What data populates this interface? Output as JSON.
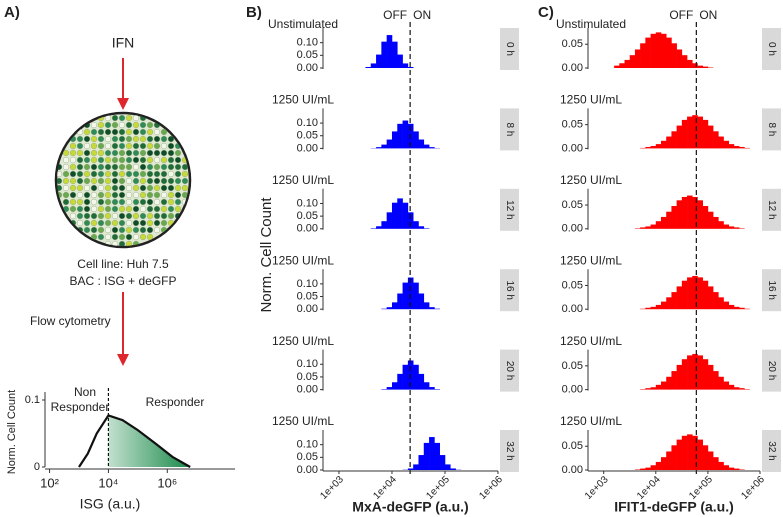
{
  "panel_a": {
    "label": "A)",
    "stimulus": "IFN",
    "cell_line": "Cell line: Huh 7.5",
    "construct": "BAC : ISG + deGFP",
    "method": "Flow cytometry"
  },
  "chart_data": [
    {
      "type": "line",
      "xlabel": "ISG (a.u.)",
      "ylabel": "Norm. Cell Count",
      "xscale": "log",
      "x": [
        1000,
        2000,
        4000,
        10000,
        30000,
        100000,
        400000,
        1500000,
        6000000
      ],
      "values": [
        0,
        0.02,
        0.05,
        0.077,
        0.07,
        0.055,
        0.035,
        0.015,
        0
      ],
      "color": "#111111",
      "fill_color": "#1a8a4a",
      "xlim": [
        70,
        200000000
      ],
      "ylim": [
        0,
        0.1
      ],
      "xticks": [
        {
          "value": 100,
          "label": "10²"
        },
        {
          "value": 10000,
          "label": "10⁴"
        },
        {
          "value": 1000000,
          "label": "10⁶"
        }
      ],
      "yticks": [
        0,
        0.1
      ],
      "threshold": 10000,
      "off_label_lines": [
        "Non",
        "Responder"
      ],
      "on_label": "Responder"
    },
    {
      "type": "histogram",
      "panel_label": "B)",
      "xlabel": "MxA-deGFP (a.u.)",
      "ylabel": "Norm. Cell Count",
      "xscale": "log",
      "xlim": [
        500,
        1000000
      ],
      "ylim": [
        0,
        0.15
      ],
      "xticks": [
        {
          "value": 1000,
          "label": "1e+03"
        },
        {
          "value": 10000,
          "label": "1e+04"
        },
        {
          "value": 100000,
          "label": "1e+05"
        },
        {
          "value": 1000000,
          "label": "1e+06"
        }
      ],
      "yticks": [
        {
          "value": 0,
          "label": "0.00"
        },
        0.05,
        {
          "value": 0.1,
          "label": "0.10"
        }
      ],
      "threshold": 22000,
      "threshold_labels": [
        "OFF",
        "ON"
      ],
      "color": "#0000ff",
      "annotation_color": "#e8282e",
      "bins": [
        1585,
        1995,
        2512,
        3162,
        3981,
        5012,
        6310,
        7943,
        10000,
        12589,
        15849,
        19953,
        25119,
        31623,
        39811,
        50119,
        63096,
        79433,
        100000,
        125893,
        158489,
        199526,
        251189,
        316228,
        398107,
        501187,
        630957
      ],
      "facets": [
        {
          "strip": "0 h",
          "annotation": "Unstimulated",
          "values": [
            0,
            0,
            0,
            0.004,
            0.018,
            0.053,
            0.104,
            0.13,
            0.104,
            0.053,
            0.018,
            0.004,
            0,
            0,
            0,
            0,
            0,
            0,
            0,
            0,
            0,
            0,
            0,
            0,
            0,
            0
          ]
        },
        {
          "strip": "8 h",
          "annotation": "1250 UI/mL",
          "values": [
            0,
            0,
            0,
            0,
            0.001,
            0.005,
            0.015,
            0.035,
            0.067,
            0.097,
            0.11,
            0.097,
            0.067,
            0.035,
            0.015,
            0.005,
            0.001,
            0,
            0,
            0,
            0,
            0,
            0,
            0,
            0,
            0
          ]
        },
        {
          "strip": "12 h",
          "annotation": "1250 UI/mL",
          "values": [
            0,
            0,
            0,
            0,
            0.002,
            0.01,
            0.03,
            0.065,
            0.103,
            0.12,
            0.103,
            0.065,
            0.03,
            0.01,
            0.002,
            0,
            0,
            0,
            0,
            0,
            0,
            0,
            0,
            0,
            0,
            0
          ]
        },
        {
          "strip": "16 h",
          "annotation": "1250 UI/mL",
          "values": [
            0,
            0,
            0,
            0,
            0,
            0,
            0.002,
            0.008,
            0.027,
            0.062,
            0.105,
            0.125,
            0.105,
            0.062,
            0.027,
            0.008,
            0.002,
            0,
            0,
            0,
            0,
            0,
            0,
            0,
            0,
            0
          ]
        },
        {
          "strip": "20 h",
          "annotation": "1250 UI/mL",
          "values": [
            0,
            0,
            0,
            0,
            0,
            0,
            0.002,
            0.01,
            0.029,
            0.062,
            0.098,
            0.115,
            0.098,
            0.062,
            0.029,
            0.01,
            0.002,
            0,
            0,
            0,
            0,
            0,
            0,
            0,
            0,
            0
          ]
        },
        {
          "strip": "32 h",
          "annotation": "1250 UI/mL",
          "values": [
            0,
            0,
            0,
            0,
            0,
            0,
            0,
            0,
            0,
            0,
            0.001,
            0.006,
            0.022,
            0.059,
            0.107,
            0.13,
            0.107,
            0.059,
            0.022,
            0.006,
            0.001,
            0,
            0,
            0,
            0,
            0
          ]
        }
      ]
    },
    {
      "type": "histogram",
      "panel_label": "C)",
      "xlabel": "IFIT1-deGFP (a.u.)",
      "xscale": "log",
      "xlim": [
        500,
        1000000
      ],
      "ylim": [
        0,
        0.08
      ],
      "xticks": [
        {
          "value": 1000,
          "label": "1e+03"
        },
        {
          "value": 10000,
          "label": "1e+04"
        },
        {
          "value": 100000,
          "label": "1e+05"
        },
        {
          "value": 1000000,
          "label": "1e+06"
        }
      ],
      "yticks": [
        {
          "value": 0,
          "label": "0.00"
        },
        0.05
      ],
      "threshold": 60000,
      "threshold_labels": [
        "OFF",
        "ON"
      ],
      "color": "#ff0000",
      "annotation_color": "#e8282e",
      "bins": [
        1585,
        1995,
        2512,
        3162,
        3981,
        5012,
        6310,
        7943,
        10000,
        12589,
        15849,
        19953,
        25119,
        31623,
        39811,
        50119,
        63096,
        79433,
        100000,
        125893,
        158489,
        199526,
        251189,
        316228,
        398107,
        501187,
        630957
      ],
      "facets": [
        {
          "strip": "0 h",
          "annotation": "Unstimulated",
          "values": [
            0.005,
            0.01,
            0.017,
            0.027,
            0.039,
            0.052,
            0.064,
            0.072,
            0.075,
            0.072,
            0.064,
            0.052,
            0.039,
            0.027,
            0.017,
            0.01,
            0.005,
            0.003,
            0.001,
            0,
            0,
            0,
            0,
            0,
            0,
            0
          ]
        },
        {
          "strip": "8 h",
          "annotation": "1250 UI/mL",
          "values": [
            0,
            0,
            0,
            0,
            0,
            0.001,
            0.003,
            0.005,
            0.009,
            0.016,
            0.025,
            0.036,
            0.048,
            0.06,
            0.067,
            0.07,
            0.067,
            0.06,
            0.048,
            0.036,
            0.025,
            0.016,
            0.009,
            0.005,
            0.003,
            0.001
          ]
        },
        {
          "strip": "12 h",
          "annotation": "1250 UI/mL",
          "values": [
            0,
            0,
            0,
            0,
            0.001,
            0.003,
            0.005,
            0.009,
            0.016,
            0.025,
            0.036,
            0.048,
            0.06,
            0.067,
            0.07,
            0.067,
            0.06,
            0.048,
            0.036,
            0.025,
            0.016,
            0.009,
            0.005,
            0.003,
            0.001,
            0
          ]
        },
        {
          "strip": "16 h",
          "annotation": "1250 UI/mL",
          "values": [
            0,
            0,
            0,
            0,
            0,
            0.001,
            0.003,
            0.005,
            0.009,
            0.016,
            0.025,
            0.036,
            0.048,
            0.06,
            0.067,
            0.07,
            0.067,
            0.06,
            0.048,
            0.036,
            0.025,
            0.016,
            0.009,
            0.005,
            0.003,
            0.001
          ]
        },
        {
          "strip": "20 h",
          "annotation": "1250 UI/mL",
          "values": [
            0,
            0,
            0,
            0,
            0,
            0.001,
            0.003,
            0.005,
            0.01,
            0.017,
            0.027,
            0.039,
            0.052,
            0.064,
            0.072,
            0.075,
            0.072,
            0.064,
            0.052,
            0.039,
            0.027,
            0.017,
            0.01,
            0.005,
            0.003,
            0.001
          ]
        },
        {
          "strip": "32 h",
          "annotation": "1250 UI/mL",
          "values": [
            0,
            0,
            0,
            0,
            0.001,
            0.003,
            0.005,
            0.01,
            0.017,
            0.027,
            0.039,
            0.052,
            0.064,
            0.072,
            0.075,
            0.072,
            0.064,
            0.052,
            0.039,
            0.027,
            0.017,
            0.01,
            0.005,
            0.003,
            0.001,
            0
          ]
        }
      ]
    }
  ]
}
